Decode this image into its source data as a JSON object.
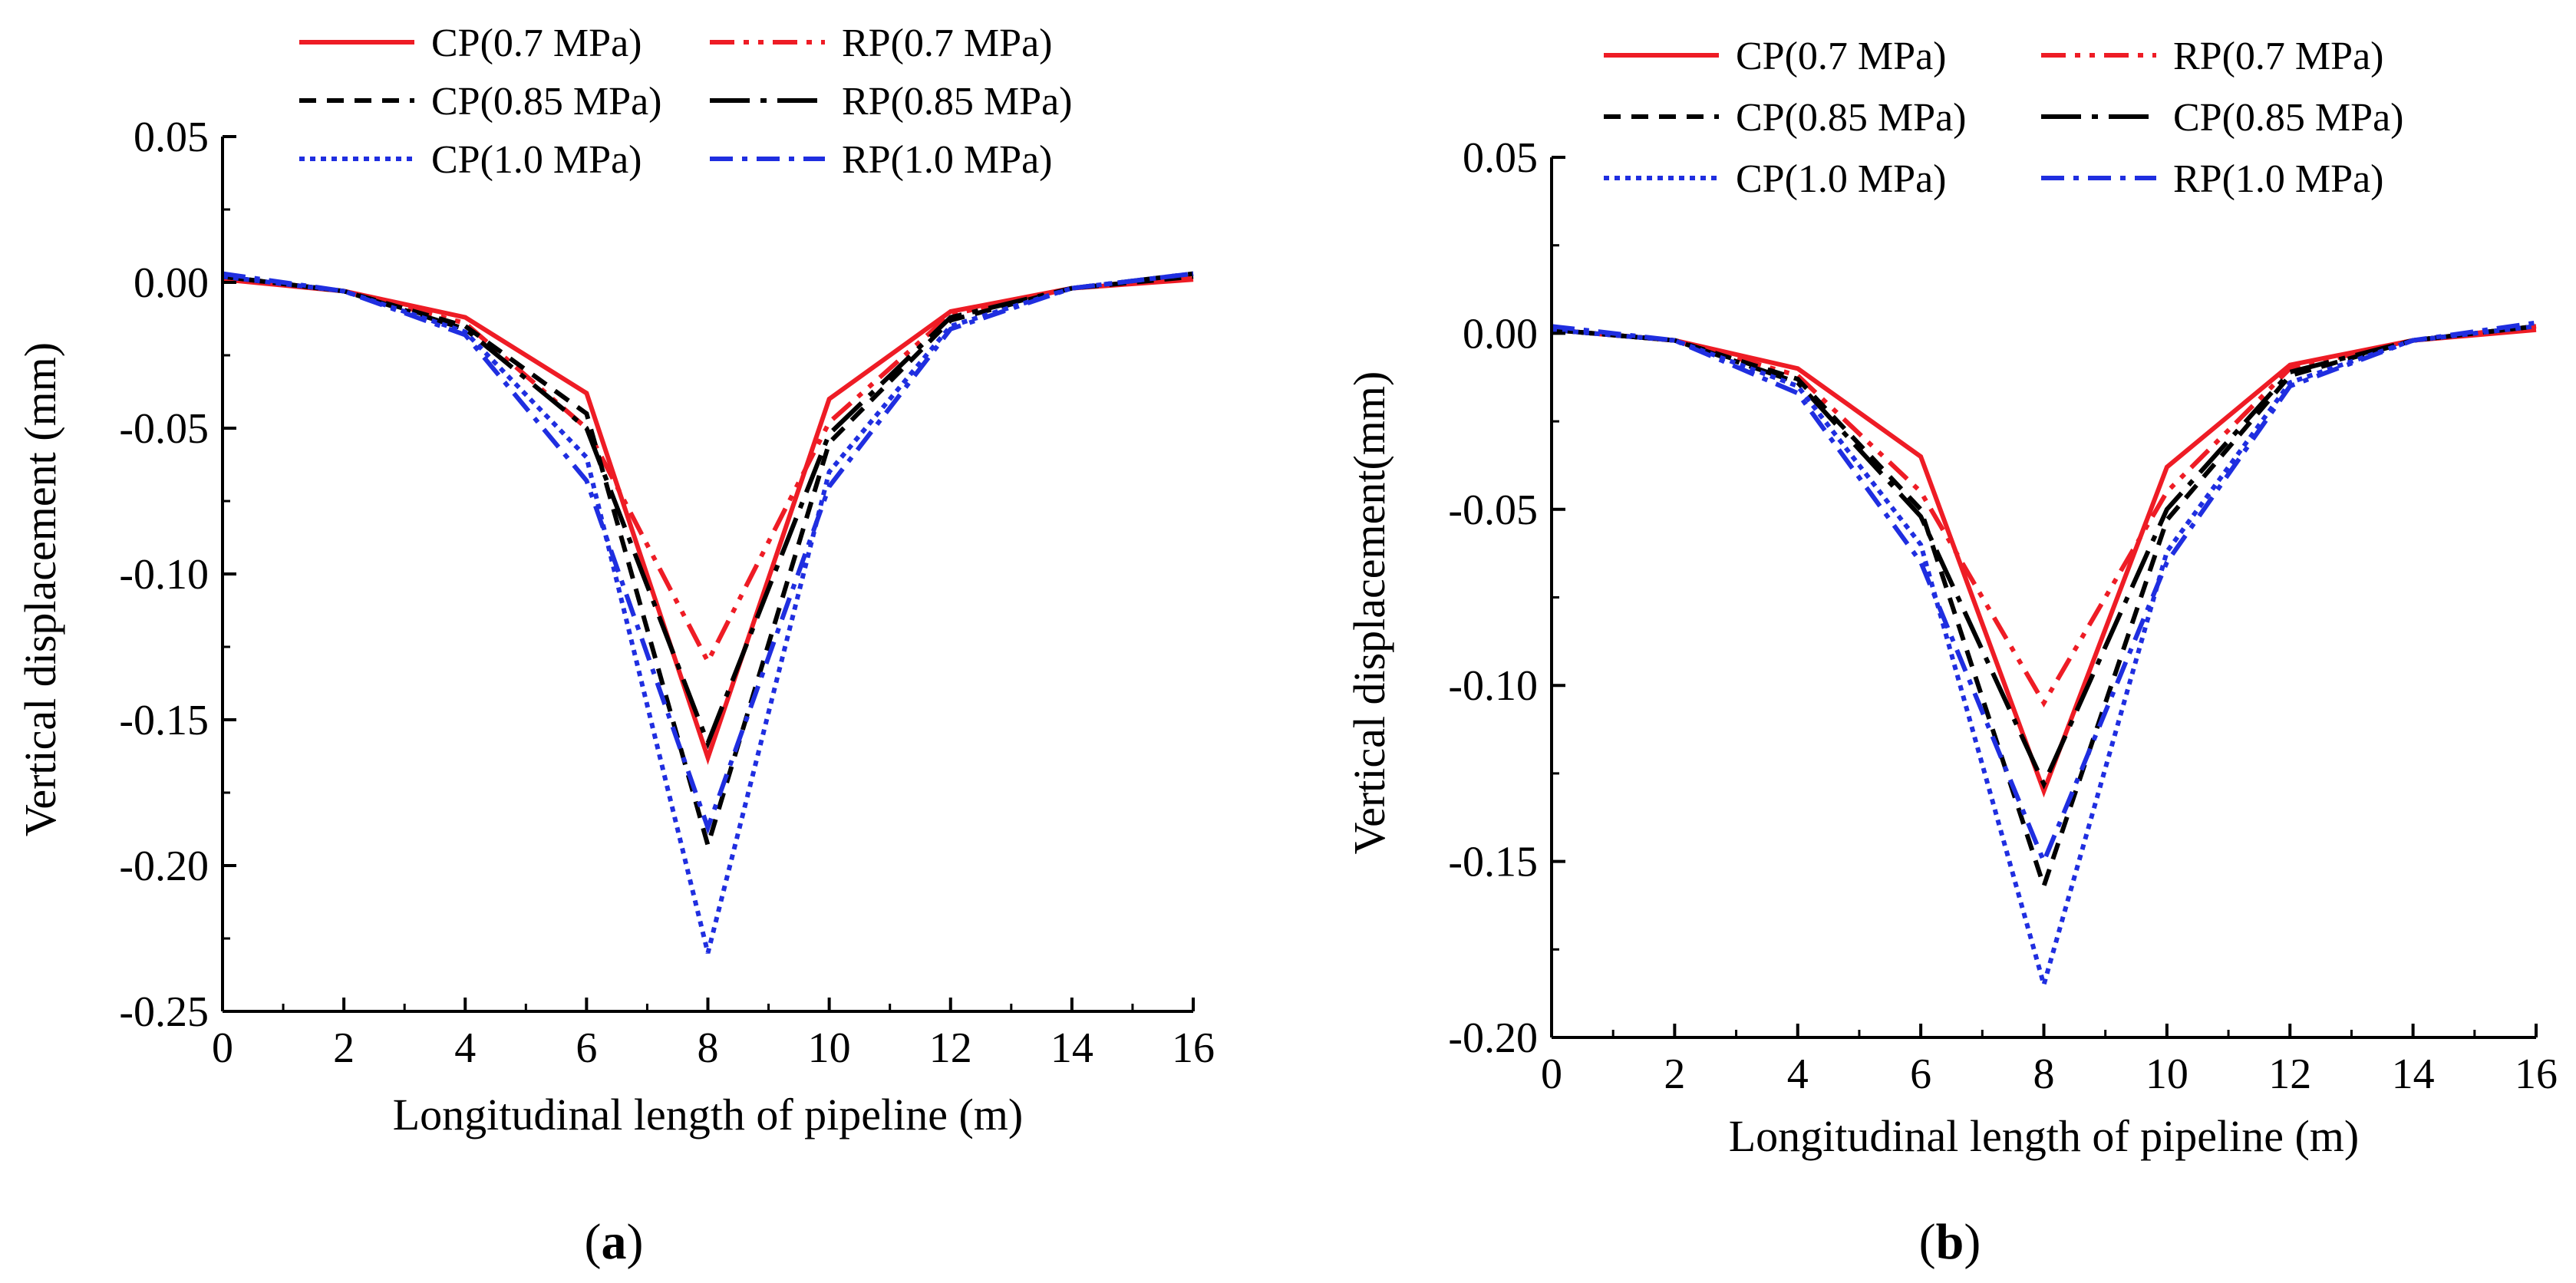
{
  "chart_data": [
    {
      "type": "line",
      "caption_letter": "a",
      "caption_open": "(",
      "caption_close": ")",
      "xlabel": "Longitudinal length of pipeline (m)",
      "ylabel": "Vertical displacement (mm)",
      "xlim": [
        0,
        16
      ],
      "ylim": [
        -0.25,
        0.05
      ],
      "x_ticks": [
        0,
        2,
        4,
        6,
        8,
        10,
        12,
        14,
        16
      ],
      "x_tick_labels": [
        "0",
        "2",
        "4",
        "6",
        "8",
        "10",
        "12",
        "14",
        "16"
      ],
      "y_ticks": [
        0.05,
        0.0,
        -0.05,
        -0.1,
        -0.15,
        -0.2,
        -0.25
      ],
      "y_tick_labels": [
        "0.05",
        "0.00",
        "-0.05",
        "-0.10",
        "-0.15",
        "-0.20",
        "-0.25"
      ],
      "x": [
        0,
        2,
        4,
        6,
        8,
        10,
        12,
        14,
        16
      ],
      "series": [
        {
          "name": "CP(0.7 MPa)",
          "color": "#ee1c25",
          "dash": "solid",
          "values": [
            0.001,
            -0.003,
            -0.012,
            -0.038,
            -0.163,
            -0.04,
            -0.01,
            -0.002,
            0.001
          ]
        },
        {
          "name": "RP(0.7 MPa)",
          "color": "#ee1c25",
          "dash": "dashdotdot",
          "values": [
            0.002,
            -0.003,
            -0.014,
            -0.05,
            -0.13,
            -0.048,
            -0.011,
            -0.002,
            0.002
          ]
        },
        {
          "name": "CP(0.85 MPa)",
          "color": "#000000",
          "dash": "dash",
          "values": [
            0.002,
            -0.003,
            -0.015,
            -0.045,
            -0.193,
            -0.055,
            -0.013,
            -0.002,
            0.002
          ]
        },
        {
          "name": "RP(0.85 MPa)",
          "color": "#000000",
          "dash": "longdashdot",
          "values": [
            0.002,
            -0.003,
            -0.016,
            -0.05,
            -0.158,
            -0.052,
            -0.012,
            -0.002,
            0.003
          ]
        },
        {
          "name": "CP(1.0 MPa)",
          "color": "#1f2ee0",
          "dash": "dot",
          "values": [
            0.002,
            -0.003,
            -0.017,
            -0.06,
            -0.23,
            -0.065,
            -0.015,
            -0.002,
            0.003
          ]
        },
        {
          "name": "RP(1.0 MPa)",
          "color": "#1f2ee0",
          "dash": "dashdot",
          "values": [
            0.003,
            -0.003,
            -0.018,
            -0.068,
            -0.187,
            -0.07,
            -0.016,
            -0.002,
            0.003
          ]
        }
      ]
    },
    {
      "type": "line",
      "caption_letter": "b",
      "caption_open": "(",
      "caption_close": ")",
      "xlabel": "Longitudinal length of pipeline (m)",
      "ylabel": "Vertical displacement(mm)",
      "xlim": [
        0,
        16
      ],
      "ylim": [
        -0.2,
        0.05
      ],
      "x_ticks": [
        0,
        2,
        4,
        6,
        8,
        10,
        12,
        14,
        16
      ],
      "x_tick_labels": [
        "0",
        "2",
        "4",
        "6",
        "8",
        "10",
        "12",
        "14",
        "16"
      ],
      "y_ticks": [
        0.05,
        0.0,
        -0.05,
        -0.1,
        -0.15,
        -0.2
      ],
      "y_tick_labels": [
        "0.05",
        "0.00",
        "-0.05",
        "-0.10",
        "-0.15",
        "-0.20"
      ],
      "x": [
        0,
        2,
        4,
        6,
        8,
        10,
        12,
        14,
        16
      ],
      "series": [
        {
          "name": "CP(0.7 MPa)",
          "color": "#ee1c25",
          "dash": "solid",
          "values": [
            0.001,
            -0.002,
            -0.01,
            -0.035,
            -0.13,
            -0.038,
            -0.009,
            -0.002,
            0.001
          ]
        },
        {
          "name": "RP(0.7 MPa)",
          "color": "#ee1c25",
          "dash": "dashdotdot",
          "values": [
            0.001,
            -0.002,
            -0.012,
            -0.045,
            -0.105,
            -0.045,
            -0.01,
            -0.002,
            0.002
          ]
        },
        {
          "name": "CP(0.85 MPa)",
          "color": "#000000",
          "dash": "dash",
          "values": [
            0.001,
            -0.002,
            -0.013,
            -0.05,
            -0.157,
            -0.053,
            -0.012,
            -0.002,
            0.002
          ]
        },
        {
          "name": "CP(0.85 MPa)",
          "color": "#000000",
          "dash": "longdashdot",
          "values": [
            0.001,
            -0.002,
            -0.014,
            -0.052,
            -0.128,
            -0.05,
            -0.011,
            -0.002,
            0.002
          ]
        },
        {
          "name": "CP(1.0 MPa)",
          "color": "#1f2ee0",
          "dash": "dot",
          "values": [
            0.001,
            -0.002,
            -0.015,
            -0.06,
            -0.185,
            -0.062,
            -0.014,
            -0.002,
            0.002
          ]
        },
        {
          "name": "RP(1.0 MPa)",
          "color": "#1f2ee0",
          "dash": "dashdot",
          "values": [
            0.002,
            -0.002,
            -0.017,
            -0.065,
            -0.15,
            -0.065,
            -0.015,
            -0.002,
            0.003
          ]
        }
      ]
    }
  ]
}
